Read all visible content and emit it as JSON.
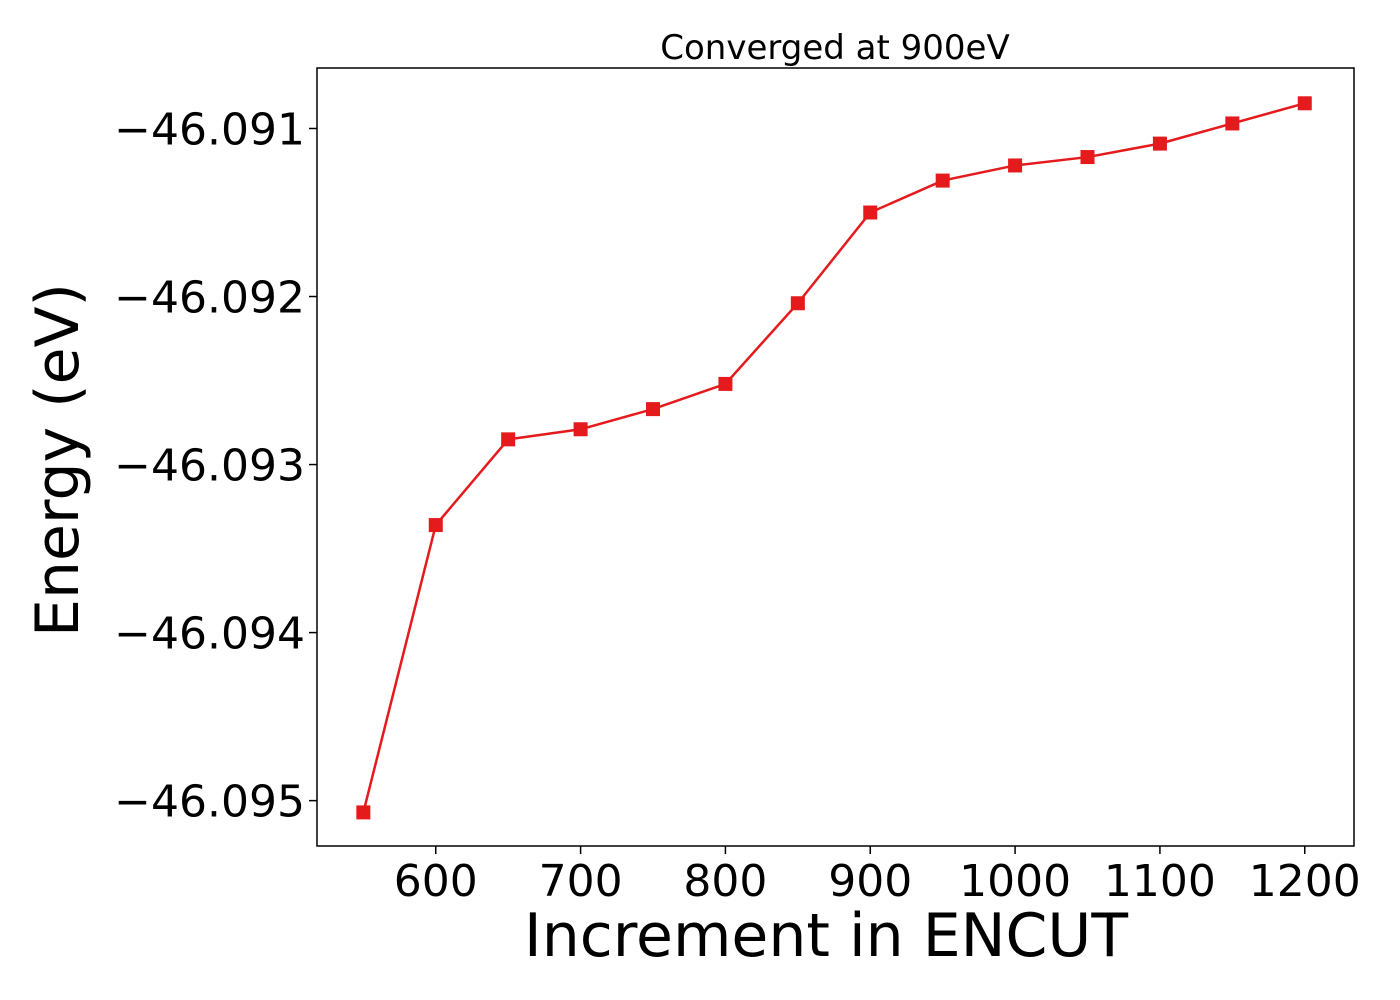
{
  "chart_data": {
    "type": "line",
    "title": "Converged at 900eV",
    "xlabel": "Increment in ENCUT",
    "ylabel": "Energy (eV)",
    "xlim": [
      518,
      1234
    ],
    "ylim": [
      -46.09527,
      -46.09064
    ],
    "x_ticks": [
      600,
      700,
      800,
      900,
      1000,
      1100,
      1200
    ],
    "x_tick_labels": [
      "600",
      "700",
      "800",
      "900",
      "1000",
      "1100",
      "1200"
    ],
    "y_ticks": [
      -46.091,
      -46.092,
      -46.093,
      -46.094,
      -46.095
    ],
    "y_tick_labels": [
      "−46.091",
      "−46.092",
      "−46.093",
      "−46.094",
      "−46.095"
    ],
    "grid": false,
    "color": "#e41a1c",
    "marker": "square",
    "series": [
      {
        "x": [
          550,
          600,
          650,
          700,
          750,
          800,
          850,
          900,
          950,
          1000,
          1050,
          1100,
          1150,
          1200
        ],
        "y": [
          -46.09507,
          -46.09336,
          -46.09285,
          -46.09279,
          -46.09267,
          -46.09252,
          -46.09204,
          -46.0915,
          -46.09131,
          -46.09122,
          -46.09117,
          -46.09109,
          -46.09097,
          -46.09085
        ]
      }
    ]
  }
}
